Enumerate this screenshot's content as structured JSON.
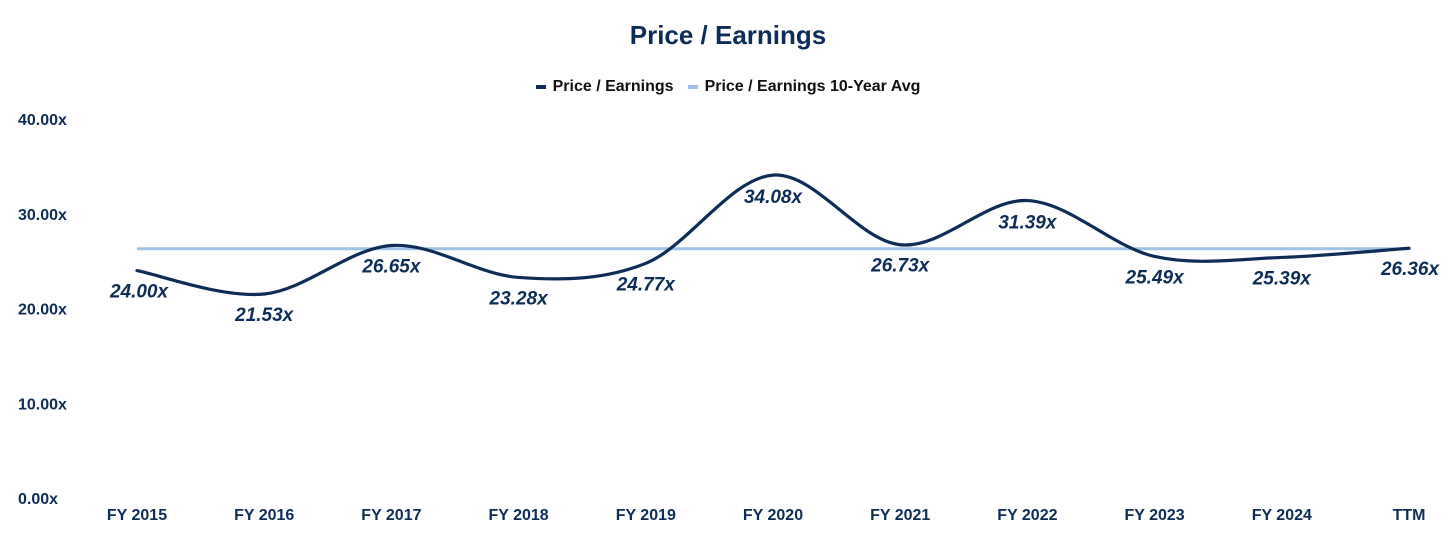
{
  "colors": {
    "series_main": "#0d2d57",
    "series_avg": "#9dc3e6",
    "text": "#0d2d57"
  },
  "chart_data": {
    "type": "line",
    "title": "Price / Earnings",
    "xlabel": "",
    "ylabel": "",
    "categories": [
      "FY 2015",
      "FY 2016",
      "FY 2017",
      "FY 2018",
      "FY 2019",
      "FY 2020",
      "FY 2021",
      "FY 2022",
      "FY 2023",
      "FY 2024",
      "TTM"
    ],
    "ylim": [
      0,
      40
    ],
    "y_ticks": [
      "0.00x",
      "10.00x",
      "20.00x",
      "30.00x",
      "40.00x"
    ],
    "y_tick_values": [
      0,
      10,
      20,
      30,
      40
    ],
    "grid": false,
    "legend_position": "top-center",
    "series": [
      {
        "name": "Price / Earnings",
        "values": [
          24.0,
          21.53,
          26.65,
          23.28,
          24.77,
          34.08,
          26.73,
          31.39,
          25.49,
          25.39,
          26.36
        ],
        "labels": [
          "24.00x",
          "21.53x",
          "26.65x",
          "23.28x",
          "24.77x",
          "34.08x",
          "26.73x",
          "31.39x",
          "25.49x",
          "25.39x",
          "26.36x"
        ]
      },
      {
        "name": "Price / Earnings 10-Year Avg",
        "values": [
          26.3,
          26.3,
          26.3,
          26.3,
          26.3,
          26.3,
          26.3,
          26.3,
          26.3,
          26.3,
          26.3
        ]
      }
    ]
  }
}
